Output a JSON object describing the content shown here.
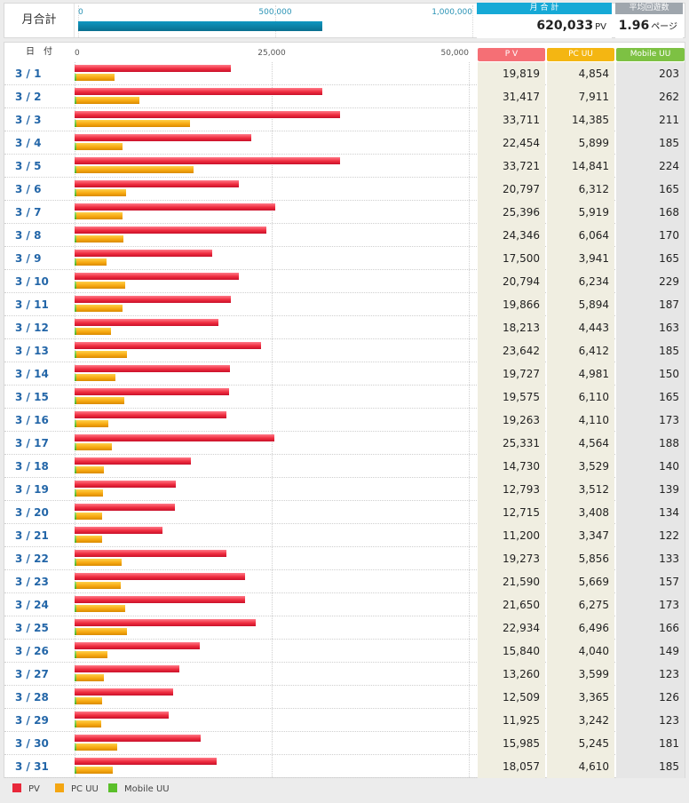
{
  "summary": {
    "label": "月合計",
    "ticks": [
      "0",
      "500,000",
      "1,000,000"
    ],
    "tick_values": [
      0,
      500000,
      1000000
    ],
    "max": 1000000,
    "value": 620033
  },
  "kpis": {
    "total": {
      "header": "月 合 計",
      "value": "620,033",
      "unit": "PV",
      "color": "#16a9d6"
    },
    "avg": {
      "header": "平均回遊数",
      "value": "1.96",
      "unit": "ページ",
      "color": "#9fa6ad"
    }
  },
  "table": {
    "date_header": "日　付",
    "columns": [
      {
        "label": "P V",
        "color": "#f56f75"
      },
      {
        "label": "PC UU",
        "color": "#f4b612"
      },
      {
        "label": "Mobile UU",
        "color": "#7dc143"
      }
    ]
  },
  "legend": [
    {
      "label": "PV",
      "color": "#e8283a"
    },
    {
      "label": "PC UU",
      "color": "#f4a612"
    },
    {
      "label": "Mobile UU",
      "color": "#5abf2a"
    }
  ],
  "chart_data": {
    "type": "bar",
    "orientation": "horizontal",
    "xlim": [
      0,
      50000
    ],
    "xticks": [
      "0",
      "25,000",
      "50,000"
    ],
    "xtick_values": [
      0,
      25000,
      50000
    ],
    "grid": true,
    "legend_position": "bottom-left",
    "categories": [
      "3 / 1",
      "3 / 2",
      "3 / 3",
      "3 / 4",
      "3 / 5",
      "3 / 6",
      "3 / 7",
      "3 / 8",
      "3 / 9",
      "3 / 10",
      "3 / 11",
      "3 / 12",
      "3 / 13",
      "3 / 14",
      "3 / 15",
      "3 / 16",
      "3 / 17",
      "3 / 18",
      "3 / 19",
      "3 / 20",
      "3 / 21",
      "3 / 22",
      "3 / 23",
      "3 / 24",
      "3 / 25",
      "3 / 26",
      "3 / 27",
      "3 / 28",
      "3 / 29",
      "3 / 30",
      "3 / 31"
    ],
    "series": [
      {
        "name": "PV",
        "color": "#e8283a",
        "values": [
          19819,
          31417,
          33711,
          22454,
          33721,
          20797,
          25396,
          24346,
          17500,
          20794,
          19866,
          18213,
          23642,
          19727,
          19575,
          19263,
          25331,
          14730,
          12793,
          12715,
          11200,
          19273,
          21590,
          21650,
          22934,
          15840,
          13260,
          12509,
          11925,
          15985,
          18057
        ],
        "labels": [
          "19,819",
          "31,417",
          "33,711",
          "22,454",
          "33,721",
          "20,797",
          "25,396",
          "24,346",
          "17,500",
          "20,794",
          "19,866",
          "18,213",
          "23,642",
          "19,727",
          "19,575",
          "19,263",
          "25,331",
          "14,730",
          "12,793",
          "12,715",
          "11,200",
          "19,273",
          "21,590",
          "21,650",
          "22,934",
          "15,840",
          "13,260",
          "12,509",
          "11,925",
          "15,985",
          "18,057"
        ]
      },
      {
        "name": "PC UU",
        "color": "#f4a612",
        "values": [
          4854,
          7911,
          14385,
          5899,
          14841,
          6312,
          5919,
          6064,
          3941,
          6234,
          5894,
          4443,
          6412,
          4981,
          6110,
          4110,
          4564,
          3529,
          3512,
          3408,
          3347,
          5856,
          5669,
          6275,
          6496,
          4040,
          3599,
          3365,
          3242,
          5245,
          4610
        ],
        "labels": [
          "4,854",
          "7,911",
          "14,385",
          "5,899",
          "14,841",
          "6,312",
          "5,919",
          "6,064",
          "3,941",
          "6,234",
          "5,894",
          "4,443",
          "6,412",
          "4,981",
          "6,110",
          "4,110",
          "4,564",
          "3,529",
          "3,512",
          "3,408",
          "3,347",
          "5,856",
          "5,669",
          "6,275",
          "6,496",
          "4,040",
          "3,599",
          "3,365",
          "3,242",
          "5,245",
          "4,610"
        ]
      },
      {
        "name": "Mobile UU",
        "color": "#5abf2a",
        "values": [
          203,
          262,
          211,
          185,
          224,
          165,
          168,
          170,
          165,
          229,
          187,
          163,
          185,
          150,
          165,
          173,
          188,
          140,
          139,
          134,
          122,
          133,
          157,
          173,
          166,
          149,
          123,
          126,
          123,
          181,
          185
        ],
        "labels": [
          "203",
          "262",
          "211",
          "185",
          "224",
          "165",
          "168",
          "170",
          "165",
          "229",
          "187",
          "163",
          "185",
          "150",
          "165",
          "173",
          "188",
          "140",
          "139",
          "134",
          "122",
          "133",
          "157",
          "173",
          "166",
          "149",
          "123",
          "126",
          "123",
          "181",
          "185"
        ]
      }
    ]
  }
}
